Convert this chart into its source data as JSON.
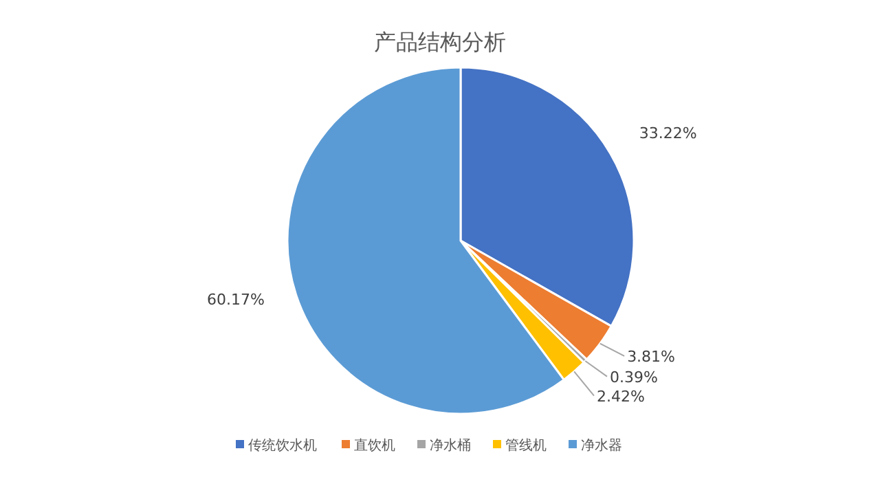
{
  "chart_data": {
    "type": "pie",
    "title": "产品结构分析",
    "categories": [
      "传统饮水机",
      "直饮机",
      "净水桶",
      "管线机",
      "净水器"
    ],
    "values": [
      33.22,
      3.81,
      0.39,
      2.42,
      60.17
    ],
    "colors": [
      "#4472c4",
      "#ed7d31",
      "#a5a5a5",
      "#ffc000",
      "#5b9bd5"
    ],
    "value_labels": [
      "33.22%",
      "3.81%",
      "0.39%",
      "2.42%",
      "60.17%"
    ],
    "legend": "bottom"
  }
}
